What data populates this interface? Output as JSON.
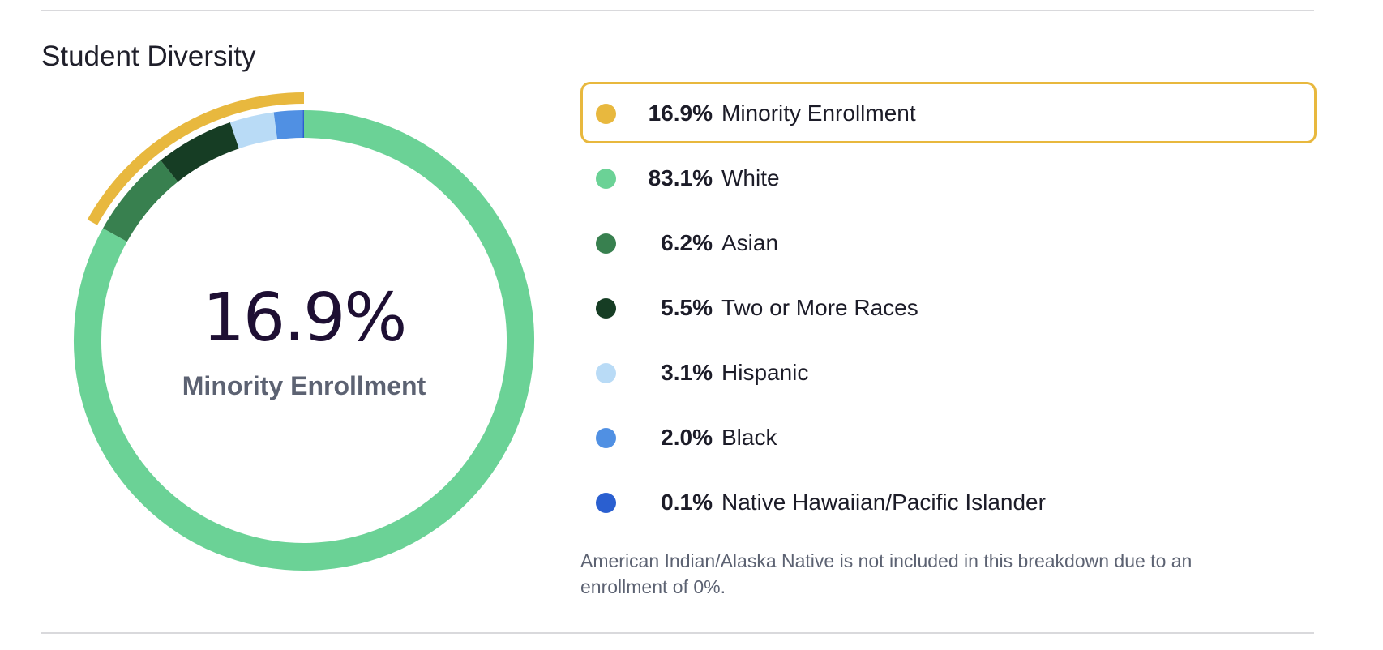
{
  "section": {
    "title": "Student Diversity",
    "footnote": "American Indian/Alaska Native is not included in this breakdown due to an enrollment of 0%."
  },
  "center": {
    "value": "16.9%",
    "label": "Minority Enrollment"
  },
  "legend": [
    {
      "percent": "16.9%",
      "label": "Minority Enrollment",
      "color": "#e8b83e",
      "highlighted": true
    },
    {
      "percent": "83.1%",
      "label": "White",
      "color": "#6bd296"
    },
    {
      "percent": "6.2%",
      "label": "Asian",
      "color": "#38804f"
    },
    {
      "percent": "5.5%",
      "label": "Two or More Races",
      "color": "#163d24"
    },
    {
      "percent": "3.1%",
      "label": "Hispanic",
      "color": "#b9dbf6"
    },
    {
      "percent": "2.0%",
      "label": "Black",
      "color": "#5090e3"
    },
    {
      "percent": "0.1%",
      "label": "Native Hawaiian/Pacific Islander",
      "color": "#2a5fd0"
    }
  ],
  "chart_data": {
    "type": "pie",
    "variant": "donut",
    "categories": [
      "White",
      "Asian",
      "Two or More Races",
      "Hispanic",
      "Black",
      "Native Hawaiian/Pacific Islander"
    ],
    "values": [
      83.1,
      6.2,
      5.5,
      3.1,
      2.0,
      0.1
    ],
    "colors": [
      "#6bd296",
      "#38804f",
      "#163d24",
      "#b9dbf6",
      "#5090e3",
      "#2a5fd0"
    ],
    "highlight_arc": {
      "label": "Minority Enrollment",
      "value": 16.9,
      "color": "#e8b83e"
    },
    "center_value": "16.9%",
    "center_label": "Minority Enrollment"
  }
}
